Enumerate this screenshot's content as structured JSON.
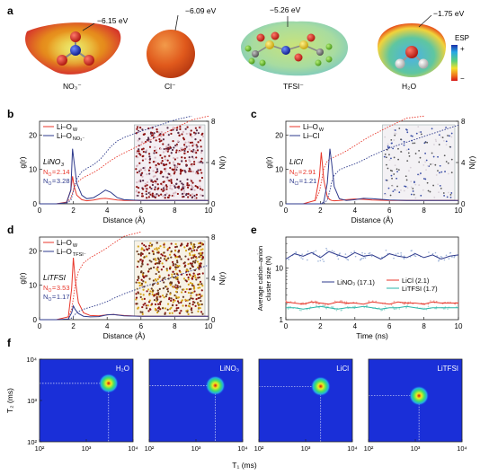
{
  "colors": {
    "red": "#e8362a",
    "blue": "#2e3a8c",
    "cyan": "#28b6a8",
    "dotRed": "#8b1010",
    "dotYellow": "#d6a419",
    "dotBlue": "#3b4ea6",
    "lightBlue": "#9db3d8",
    "t1t2bg": "#1a2fd8"
  },
  "panel_a": {
    "letter": "a",
    "molecules": [
      {
        "label": "NO₃⁻",
        "esp": "−6.15 eV",
        "kind": "no3"
      },
      {
        "label": "Cl⁻",
        "esp": "−6.09 eV",
        "kind": "cl"
      },
      {
        "label": "TFSI⁻",
        "esp": "−5.26 eV",
        "kind": "tfsi"
      },
      {
        "label": "H₂O",
        "esp": "−1.75 eV",
        "kind": "h2o"
      }
    ],
    "esp_title": "ESP",
    "esp_plus": "+",
    "esp_minus": "−"
  },
  "rdf_panels": [
    {
      "letter": "b",
      "legend": [
        "Li–O",
        "Li–O"
      ],
      "legend_sub": [
        "W",
        "NO₃⁻"
      ],
      "salt": "LiNO",
      "salt_sub": "3",
      "n1": "2.14",
      "n2": "3.28",
      "nsub1": "O",
      "nsub2": "O",
      "ylabel": "g(r)",
      "y2label": "N(r)",
      "xlabel": "Distance (Å)",
      "xticks": [
        "0",
        "2",
        "4",
        "6",
        "8",
        "10"
      ],
      "yticks": [
        "0",
        "10",
        "20"
      ],
      "y2ticks": [
        "0",
        "4",
        "8"
      ]
    },
    {
      "letter": "c",
      "legend": [
        "Li–O",
        "Li–Cl"
      ],
      "legend_sub": [
        "W",
        ""
      ],
      "salt": "LiCl",
      "salt_sub": "",
      "n1": "2.91",
      "n2": "1.21",
      "nsub1": "O",
      "nsub2": "Cl",
      "ylabel": "g(r)",
      "y2label": "N(r)",
      "xlabel": "Distance (Å)",
      "xticks": [
        "0",
        "2",
        "4",
        "6",
        "8",
        "10"
      ],
      "yticks": [
        "0",
        "10",
        "20"
      ],
      "y2ticks": [
        "0",
        "4",
        "8"
      ]
    },
    {
      "letter": "d",
      "legend": [
        "Li–O",
        "Li–O"
      ],
      "legend_sub": [
        "W",
        "TFSI⁻"
      ],
      "salt": "LiTFSI",
      "salt_sub": "",
      "n1": "3.53",
      "n2": "1.17",
      "nsub1": "O",
      "nsub2": "O",
      "ylabel": "g(r)",
      "y2label": "N(r)",
      "xlabel": "Distance (Å)",
      "xticks": [
        "0",
        "2",
        "4",
        "6",
        "8",
        "10"
      ],
      "yticks": [
        "0",
        "10",
        "20"
      ],
      "y2ticks": [
        "0",
        "4",
        "8"
      ]
    }
  ],
  "panel_e": {
    "letter": "e",
    "ylabel1": "Average cation–anion",
    "ylabel2": "cluster size (N)",
    "xlabel": "Time (ns)",
    "xticks": [
      "0",
      "2",
      "4",
      "6",
      "8",
      "10"
    ],
    "yticks": [
      "1",
      "10"
    ],
    "legend": [
      {
        "name": "LiNO₃ (17.1)"
      },
      {
        "name": "LiCl (2.1)"
      },
      {
        "name": "LiTFSI (1.7)"
      }
    ]
  },
  "panel_f": {
    "letter": "f",
    "ylabel": "T₂ (ms)",
    "xlabel": "T₁ (ms)",
    "ticks": [
      "10²",
      "10³",
      "10⁴"
    ],
    "maps": [
      {
        "label": "H₂O",
        "t1": 3000,
        "t2": 2600
      },
      {
        "label": "LiNO₃",
        "t1": 2600,
        "t2": 2300
      },
      {
        "label": "LiCl",
        "t1": 2100,
        "t2": 2200
      },
      {
        "label": "LiTFSI",
        "t1": 1200,
        "t2": 1300
      }
    ]
  },
  "chart_data": [
    {
      "type": "line",
      "panel": "b",
      "x": [
        0,
        1,
        1.6,
        1.85,
        1.95,
        2.05,
        2.2,
        2.5,
        2.8,
        3.2,
        3.6,
        3.9,
        4.2,
        4.6,
        5,
        6,
        7,
        8,
        9,
        10
      ],
      "series": [
        {
          "name": "Li–O_W",
          "values": [
            0,
            0,
            0.5,
            4,
            8,
            5,
            2.5,
            1.2,
            0.9,
            1.1,
            1.5,
            1.6,
            1.4,
            1.1,
            1,
            1,
            1,
            1,
            1,
            1
          ]
        },
        {
          "name": "Li–O_NO3⁻",
          "values": [
            0,
            0,
            0.3,
            4,
            16,
            12,
            6,
            2.5,
            1.5,
            1.8,
            3,
            4,
            3.4,
            1.8,
            1.2,
            1,
            1,
            1,
            1,
            1
          ]
        }
      ],
      "xlim": [
        0,
        10
      ],
      "ylim": [
        0,
        24
      ],
      "y2lim": [
        0,
        8
      ]
    },
    {
      "type": "line",
      "panel": "c",
      "x": [
        0,
        1,
        1.7,
        1.95,
        2.05,
        2.2,
        2.4,
        2.55,
        2.65,
        2.8,
        3.1,
        3.5,
        4,
        4.5,
        5,
        6,
        7,
        8,
        9,
        10
      ],
      "series": [
        {
          "name": "Li–O_W",
          "values": [
            0,
            0,
            1,
            8,
            15,
            7,
            2,
            1.2,
            1,
            0.9,
            1,
            1.2,
            1.4,
            1.3,
            1.1,
            1,
            1,
            1,
            1,
            1
          ]
        },
        {
          "name": "Li–Cl",
          "values": [
            0,
            0,
            0,
            0,
            0,
            0.5,
            6,
            16,
            12,
            5,
            1.5,
            1,
            1.2,
            1.6,
            1.5,
            1.1,
            1,
            1,
            1,
            1
          ]
        }
      ],
      "xlim": [
        0,
        10
      ],
      "ylim": [
        0,
        24
      ],
      "y2lim": [
        0,
        8
      ]
    },
    {
      "type": "line",
      "panel": "d",
      "x": [
        0,
        1,
        1.7,
        1.9,
        2,
        2.1,
        2.3,
        2.6,
        3,
        3.5,
        4,
        4.4,
        5,
        6,
        7,
        8,
        9,
        10
      ],
      "series": [
        {
          "name": "Li–O_W",
          "values": [
            0,
            0,
            0.8,
            9,
            18,
            12,
            5,
            2,
            1.2,
            1.1,
            1.4,
            1.5,
            1.2,
            1,
            1,
            1,
            1,
            1
          ]
        },
        {
          "name": "Li–O_TFSI⁻",
          "values": [
            0,
            0,
            0.2,
            2,
            4,
            3,
            1.8,
            1,
            0.8,
            0.9,
            1.4,
            1.5,
            1.1,
            1,
            1,
            1,
            1,
            1
          ]
        }
      ],
      "xlim": [
        0,
        10
      ],
      "ylim": [
        0,
        24
      ],
      "y2lim": [
        0,
        8
      ]
    },
    {
      "type": "line",
      "panel": "e",
      "x": [
        0,
        0.5,
        1,
        1.5,
        2,
        2.5,
        3,
        3.5,
        4,
        4.5,
        5,
        5.5,
        6,
        6.5,
        7,
        7.5,
        8,
        8.5,
        9,
        9.5,
        10
      ],
      "series": [
        {
          "name": "LiNO₃ (17.1)",
          "values": [
            15,
            19,
            17,
            20,
            16,
            21,
            18,
            16,
            20,
            17,
            18,
            15,
            19,
            17,
            16,
            19,
            16,
            18,
            15,
            17,
            18
          ]
        },
        {
          "name": "LiCl (2.1)",
          "values": [
            2.2,
            2.1,
            2.0,
            2.2,
            2.1,
            2.0,
            2.2,
            2.1,
            2.1,
            2.0,
            2.2,
            2.1,
            2.0,
            2.2,
            2.1,
            2.1,
            2.0,
            2.2,
            2.1,
            2.1,
            2.1
          ]
        },
        {
          "name": "LiTFSI (1.7)",
          "values": [
            1.7,
            1.7,
            1.6,
            1.7,
            1.8,
            1.7,
            1.6,
            1.7,
            1.7,
            1.8,
            1.7,
            1.6,
            1.7,
            1.7,
            1.8,
            1.7,
            1.6,
            1.7,
            1.7,
            1.7,
            1.7
          ]
        }
      ],
      "xlim": [
        0,
        10
      ],
      "ylim": [
        1,
        40
      ],
      "yscale": "log"
    }
  ]
}
